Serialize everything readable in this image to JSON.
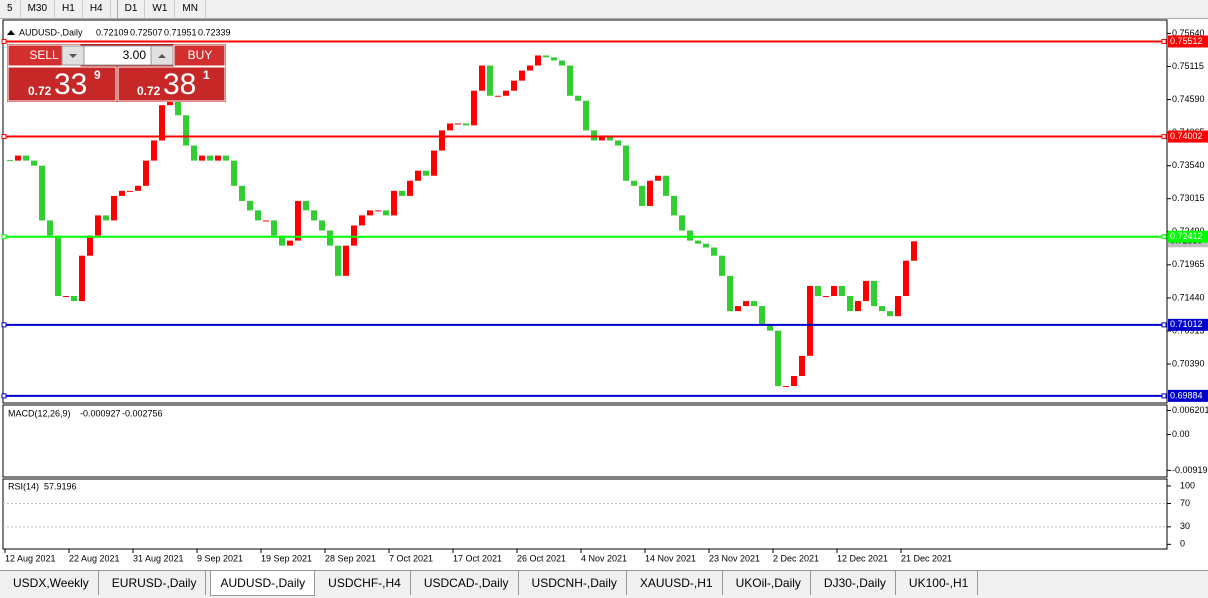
{
  "toolbar": [
    "5",
    "M30",
    "H1",
    "H4",
    "D1",
    "W1",
    "MN"
  ],
  "header": {
    "symbol": "AUDUSD-,Daily",
    "ohlc": [
      0.72109,
      0.72507,
      0.71951,
      0.72339
    ]
  },
  "trade_panel": {
    "sell": "SELL",
    "buy": "BUY",
    "lots": "3.00",
    "sell_price": {
      "big": "0.72",
      "main": "33",
      "small": "9"
    },
    "buy_price": {
      "big": "0.72",
      "main": "38",
      "small": "1"
    }
  },
  "price_axis": {
    "ylim": [
      0.69771,
      0.75853
    ],
    "ticks": [
      {
        "value": 0.7564,
        "label": "0.75640"
      },
      0.75115,
      {
        "value": 0.7459,
        "label": "0.74590"
      },
      0.74065,
      {
        "value": 0.7354,
        "label": "0.73540"
      },
      0.73015,
      {
        "value": 0.7249,
        "label": "0.72490"
      },
      0.71965,
      {
        "value": 0.7144,
        "label": "0.71440"
      },
      0.70915,
      {
        "value": 0.7039,
        "label": "0.70390"
      }
    ],
    "current": 0.72339
  },
  "levels": [
    {
      "value": 0.75512,
      "color": "#ff0000"
    },
    {
      "value": 0.74002,
      "color": "#ff0000"
    },
    {
      "value": 0.72412,
      "color": "#00ff00"
    },
    {
      "value": 0.71012,
      "color": "#0000cd"
    },
    {
      "value": 0.69884,
      "color": "#0000cd"
    }
  ],
  "candles": {
    "up_color": "#ff0000",
    "down_color": "#32cd32",
    "close": [
      0.7362,
      0.737,
      0.7362,
      0.7354,
      0.7267,
      0.7243,
      0.7147,
      0.7147,
      0.7139,
      0.7211,
      0.7243,
      0.7275,
      0.7267,
      0.7306,
      0.7314,
      0.7314,
      0.7322,
      0.7362,
      0.7394,
      0.745,
      0.7457,
      0.7434,
      0.7386,
      0.7362,
      0.737,
      0.7362,
      0.737,
      0.7362,
      0.7322,
      0.7298,
      0.7283,
      0.7267,
      0.7267,
      0.7243,
      0.7227,
      0.7235,
      0.7298,
      0.7283,
      0.7267,
      0.7251,
      0.7227,
      0.7179,
      0.7227,
      0.7259,
      0.7275,
      0.7283,
      0.7283,
      0.7275,
      0.7314,
      0.7306,
      0.733,
      0.7346,
      0.7338,
      0.7378,
      0.741,
      0.7421,
      0.7421,
      0.7418,
      0.7473,
      0.7513,
      0.7465,
      0.7465,
      0.7473,
      0.7489,
      0.7505,
      0.7513,
      0.7529,
      0.7526,
      0.7521,
      0.7513,
      0.7465,
      0.7457,
      0.741,
      0.7394,
      0.7402,
      0.7394,
      0.7386,
      0.733,
      0.7322,
      0.729,
      0.733,
      0.7338,
      0.7306,
      0.7275,
      0.7251,
      0.7235,
      0.723,
      0.7224,
      0.7211,
      0.7179,
      0.7123,
      0.7131,
      0.7139,
      0.7131,
      0.71,
      0.7092,
      0.7004,
      0.7004,
      0.702,
      0.7052,
      0.7163,
      0.7147,
      0.7147,
      0.7163,
      0.7147,
      0.7123,
      0.7139,
      0.7171,
      0.7131,
      0.7123,
      0.7115,
      0.7147,
      0.7203,
      0.72339
    ]
  },
  "macd": {
    "name": "MACD(12,26,9)",
    "values": [
      -0.000927,
      -0.002756
    ],
    "ylim": [
      0.007601,
      -0.010897
    ],
    "ticks": [
      0.006201,
      {
        "value": 0,
        "label": "0.00"
      },
      -0.009197
    ]
  },
  "rsi": {
    "name": "RSI(14)",
    "value": 57.9196,
    "ylim": [
      112,
      -8
    ],
    "ticks": [
      100,
      70,
      30,
      0
    ],
    "levels": [
      70,
      30
    ]
  },
  "dates": [
    "12 Aug 2021",
    "22 Aug 2021",
    "31 Aug 2021",
    "9 Sep 2021",
    "19 Sep 2021",
    "28 Sep 2021",
    "7 Oct 2021",
    "17 Oct 2021",
    "26 Oct 2021",
    "4 Nov 2021",
    "14 Nov 2021",
    "23 Nov 2021",
    "2 Dec 2021",
    "12 Dec 2021",
    "21 Dec 2021"
  ],
  "tabs": [
    "USDX,Weekly",
    "EURUSD-,Daily",
    "AUDUSD-,Daily",
    "USDCHF-,H4",
    "USDCAD-,Daily",
    "USDCNH-,Daily",
    "XAUUSD-,H1",
    "UKOil-,Daily",
    "DJ30-,Daily",
    "UK100-,H1"
  ],
  "active_tab": 2
}
